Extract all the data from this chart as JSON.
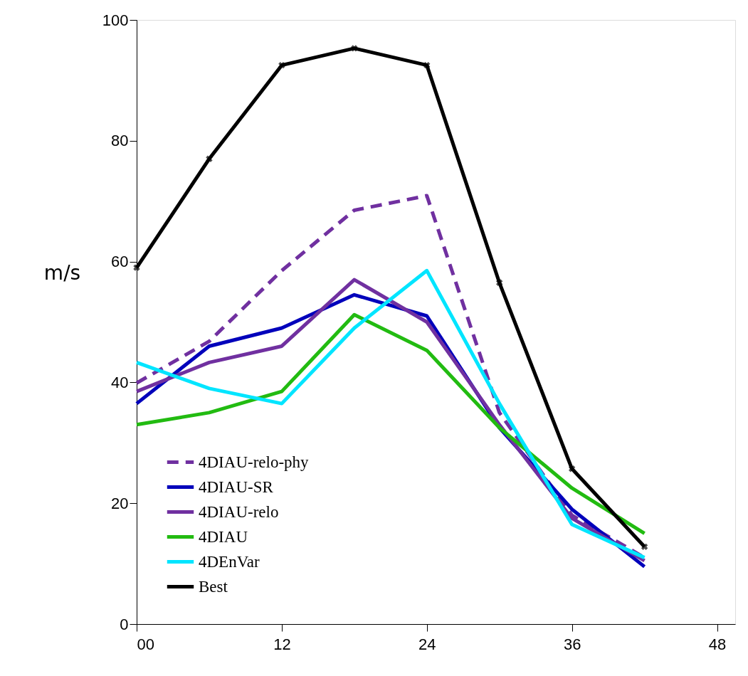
{
  "chart_data": {
    "type": "line",
    "ylabel": "m/s",
    "x": [
      0,
      6,
      12,
      18,
      24,
      30,
      36,
      42
    ],
    "xlim": [
      0,
      49.5
    ],
    "xticks": [
      {
        "value": 0,
        "label": "00"
      },
      12,
      24,
      36,
      48
    ],
    "ylim": [
      0,
      100
    ],
    "yticks": [
      0,
      20,
      40,
      60,
      80,
      100
    ],
    "grid": false,
    "legend": "bottom left",
    "series": [
      {
        "name": "4DIAU-relo-phy",
        "color": "#7030a0",
        "line_style": "dashed",
        "values": [
          39.9,
          46.8,
          58.5,
          68.5,
          70.9,
          35,
          18,
          11
        ]
      },
      {
        "name": "4DIAU-SR",
        "color": "#0000bb",
        "values": [
          36.5,
          46,
          49,
          54.5,
          51,
          32.5,
          19,
          9.5
        ]
      },
      {
        "name": "4DIAU-relo",
        "color": "#7030a0",
        "values": [
          38.5,
          43.3,
          46,
          57,
          50,
          33,
          17.5,
          10.5
        ]
      },
      {
        "name": "4DIAU",
        "color": "#22bb11",
        "values": [
          33,
          35,
          38.5,
          51.2,
          45.3,
          32.5,
          22.5,
          15
        ]
      },
      {
        "name": "4DEnVar",
        "color": "#00e5ff",
        "values": [
          43.3,
          39,
          36.5,
          49,
          58.5,
          36.5,
          16.5,
          11
        ]
      },
      {
        "name": "Best",
        "color": "#000000",
        "marker": "cross",
        "values": [
          59,
          77,
          92.5,
          95.3,
          92.5,
          56.5,
          25.7,
          12.8
        ]
      }
    ]
  }
}
